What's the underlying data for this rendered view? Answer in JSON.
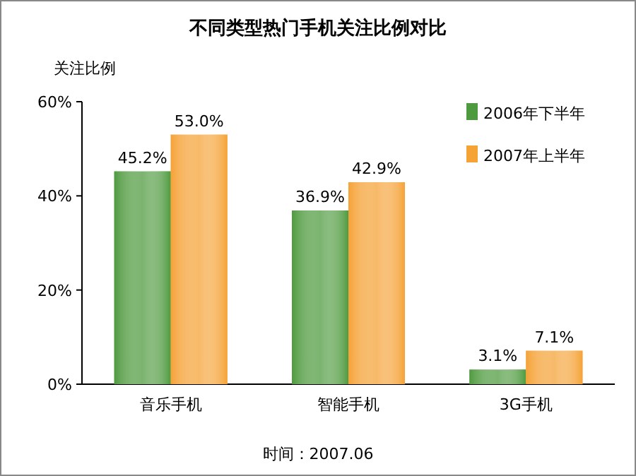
{
  "chart_data": {
    "type": "bar",
    "title": "不同类型热门手机关注比例对比",
    "ylabel": "关注比例",
    "categories": [
      "音乐手机",
      "智能手机",
      "3G手机"
    ],
    "series": [
      {
        "name": "2006年下半年",
        "color": "#4e9a3e",
        "values": [
          45.2,
          36.9,
          3.1
        ],
        "value_labels": [
          "45.2%",
          "36.9%",
          "3.1%"
        ]
      },
      {
        "name": "2007年上半年",
        "color": "#f5a236",
        "values": [
          53.0,
          42.9,
          7.1
        ],
        "value_labels": [
          "53.0%",
          "42.9%",
          "7.1%"
        ]
      }
    ],
    "ylim": [
      0,
      60
    ],
    "yticks": [
      {
        "value": 0,
        "label": "0%"
      },
      {
        "value": 20,
        "label": "20%"
      },
      {
        "value": 40,
        "label": "40%"
      },
      {
        "value": 60,
        "label": "60%"
      }
    ],
    "legend": "top right",
    "annotations": [
      "时间：2007.06"
    ]
  }
}
